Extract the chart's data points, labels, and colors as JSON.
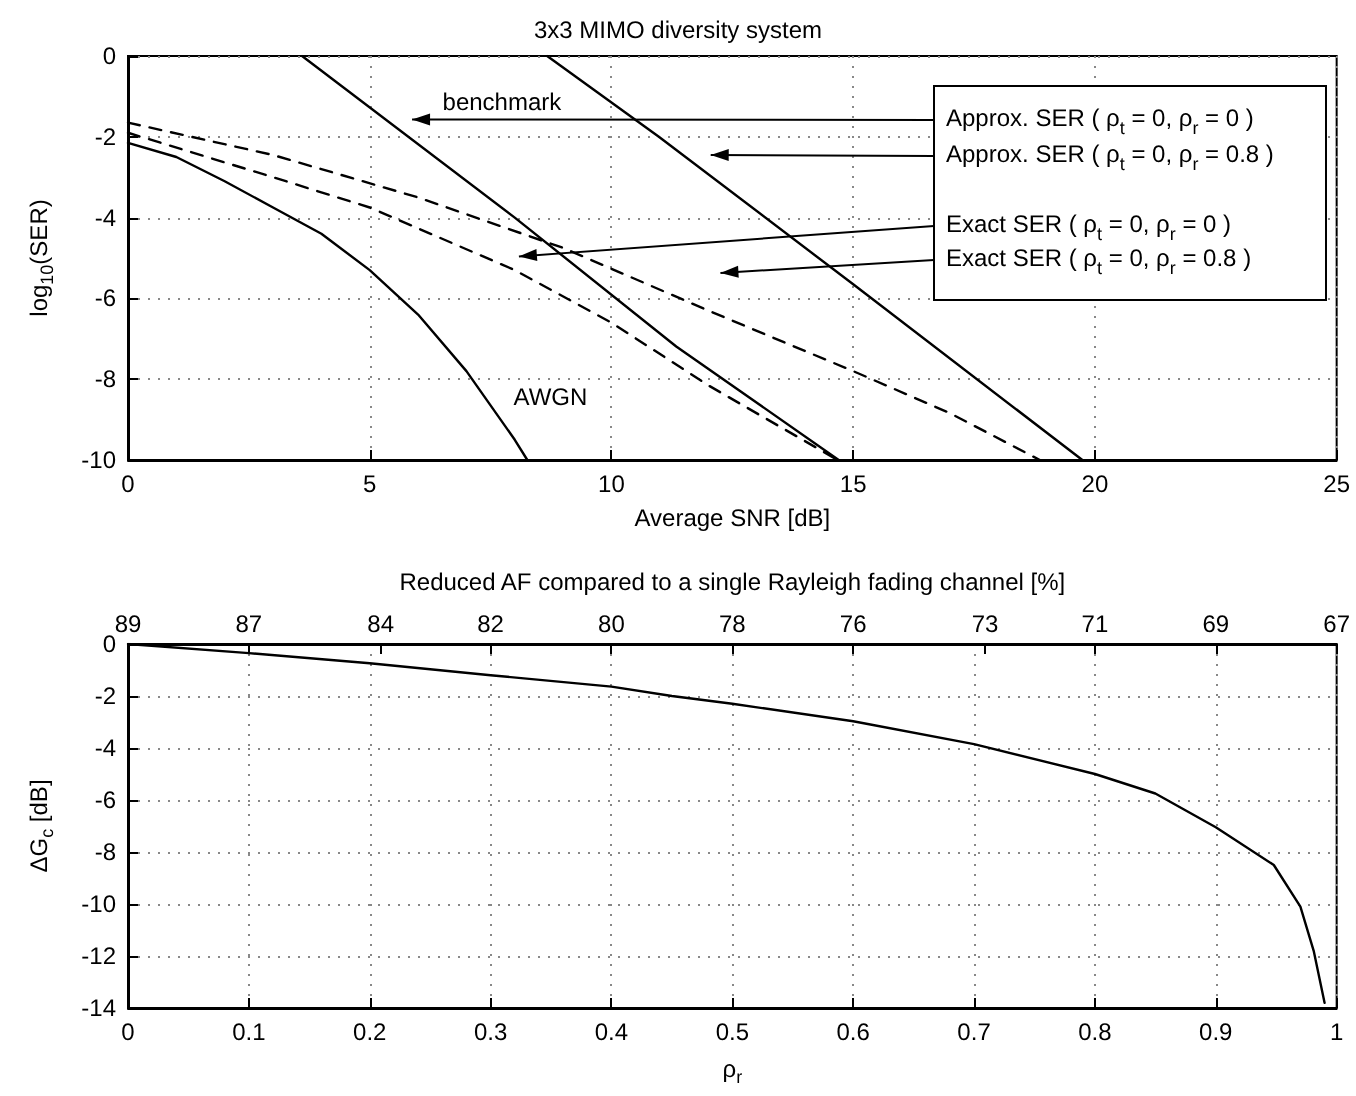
{
  "chart_data": [
    {
      "type": "line",
      "title": "3x3 MIMO diversity system",
      "xlabel": "Average SNR [dB]",
      "ylabel": "log$_{10}$(SER)",
      "xlim": [
        0,
        25
      ],
      "xticks": [
        0,
        5,
        10,
        15,
        20,
        25
      ],
      "ylim": [
        -10,
        0
      ],
      "yticks": [
        -10,
        -8,
        -6,
        -4,
        -2,
        0
      ],
      "grid": true,
      "marker": "none",
      "series": [
        {
          "color": "#000000",
          "line_style": "solid",
          "x": [
            0,
            1,
            2,
            3,
            4,
            5,
            6,
            7,
            8,
            8.26
          ],
          "values": [
            -2.15,
            -2.5,
            -3.1,
            -3.75,
            -4.4,
            -5.3,
            -6.4,
            -7.8,
            -9.5,
            -10
          ]
        },
        {
          "color": "#000000",
          "line_style": "solid",
          "x": [
            3.6,
            8.0,
            11.34,
            14.7
          ],
          "values": [
            0,
            -4.0,
            -7.19,
            -10
          ]
        },
        {
          "color": "#000000",
          "line_style": "solid",
          "x": [
            8.67,
            10.98,
            15,
            19.74
          ],
          "values": [
            0,
            -2.0,
            -5.65,
            -10
          ]
        },
        {
          "color": "#000000",
          "line_style": "dashed",
          "x": [
            0,
            3,
            6,
            9,
            12,
            15,
            17,
            18.86
          ],
          "values": [
            -1.65,
            -2.45,
            -3.5,
            -4.75,
            -6.3,
            -7.8,
            -8.84,
            -10
          ]
        },
        {
          "color": "#000000",
          "line_style": "dashed",
          "x": [
            0,
            3,
            5,
            8,
            10,
            12,
            14.68
          ],
          "values": [
            -1.9,
            -3.0,
            -3.75,
            -5.3,
            -6.6,
            -8.15,
            -10
          ]
        }
      ],
      "annotations": [
        "Approx. SER ( ρ$_{t}$ = 0, ρ$_{r}$ = 0 )",
        "Approx. SER ( ρ$_{t}$ = 0, ρ$_{r}$ = 0.8 )",
        "Exact SER ( ρ$_{t}$ = 0, ρ$_{r}$ = 0 )",
        "Exact SER ( ρ$_{t}$ = 0, ρ$_{r}$ = 0.8 )",
        "benchmark",
        "AWGN"
      ]
    },
    {
      "type": "line",
      "xlabel": "ρ$_{r}$",
      "ylabel": "ΔG$_{c}$ [dB]",
      "x2label": "Reduced AF compared to a single Rayleigh fading channel [%]",
      "xlim": [
        0,
        1
      ],
      "xticks": [
        0,
        0.1,
        0.2,
        0.3,
        0.4,
        0.5,
        0.6,
        0.7,
        0.8,
        0.9,
        1
      ],
      "x2lim": [
        89,
        67
      ],
      "x2ticks": [
        89,
        {
          "value": 86.8,
          "label": "87"
        },
        {
          "value": 84.4,
          "label": "84"
        },
        {
          "value": 82.4,
          "label": "82"
        },
        {
          "value": 80.2,
          "label": "80"
        },
        78,
        {
          "value": 75.8,
          "label": "76"
        },
        {
          "value": 73.4,
          "label": "73"
        },
        {
          "value": 71.4,
          "label": "71"
        },
        {
          "value": 69.2,
          "label": "69"
        },
        67
      ],
      "ylim": [
        -14,
        0
      ],
      "yticks": [
        -14,
        -12,
        -10,
        -8,
        -6,
        -4,
        -2,
        0
      ],
      "grid": true,
      "marker": "none",
      "series": [
        {
          "color": "#000000",
          "line_style": "solid",
          "x": [
            0,
            0.1,
            0.2,
            0.3,
            0.4,
            0.45,
            0.5,
            0.6,
            0.7,
            0.8,
            0.85,
            0.9,
            0.948,
            0.97,
            0.981,
            0.99
          ],
          "values": [
            0,
            -0.35,
            -0.74,
            -1.2,
            -1.64,
            -2.0,
            -2.3,
            -2.97,
            -3.85,
            -5.0,
            -5.75,
            -7.05,
            -8.5,
            -10.1,
            -11.8,
            -13.8
          ]
        }
      ]
    }
  ]
}
